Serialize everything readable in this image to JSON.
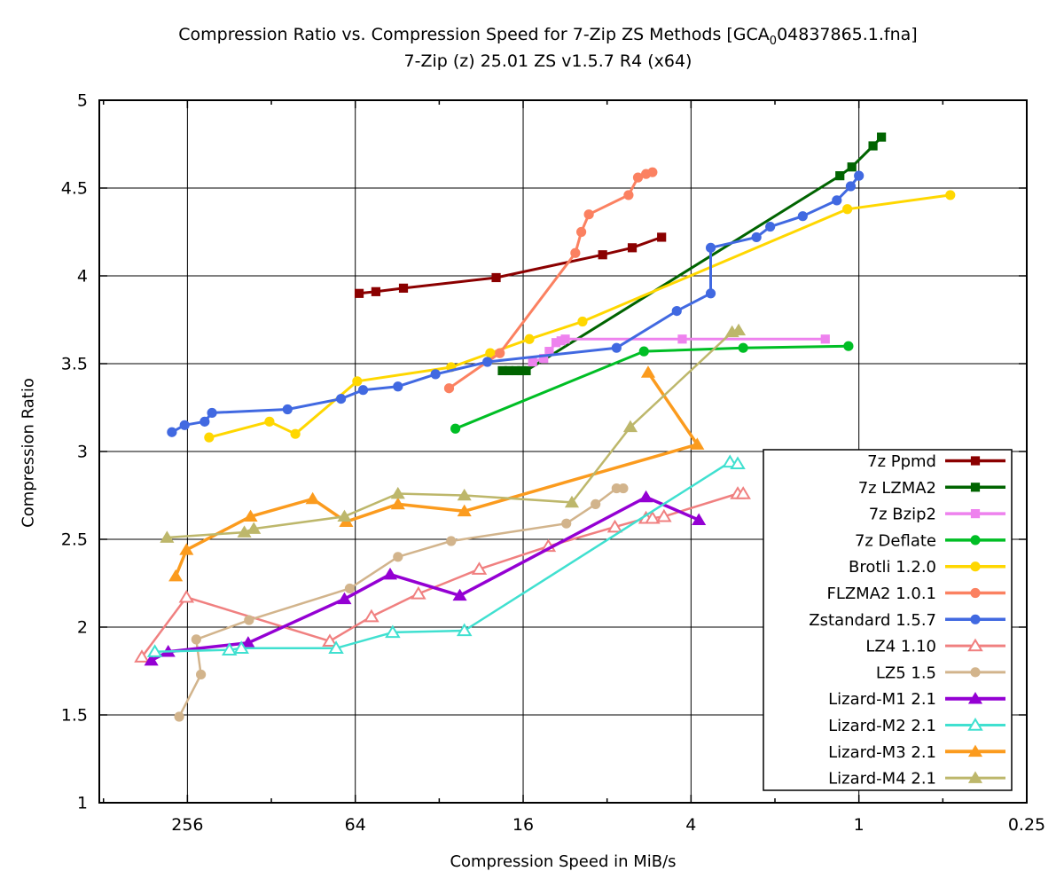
{
  "chart_data": {
    "type": "line",
    "title_parts": {
      "prefix": "Compression Ratio vs. Compression Speed for 7-Zip ZS Methods [GCA",
      "sub": "0",
      "suffix": "04837865.1.fna]"
    },
    "subtitle": "7-Zip (z) 25.01 ZS v1.5.7 R4 (x64)",
    "xlabel": "Compression Speed in MiB/s",
    "ylabel": "Compression Ratio",
    "x_scale": "log4-reversed",
    "grid": true,
    "legend_position": "inside-bottom-right",
    "ylim": [
      1,
      5
    ],
    "x_edge_values": {
      "left": 530,
      "right": 0.25
    },
    "x_ticks": [
      {
        "v": 256,
        "label": "256"
      },
      {
        "v": 64,
        "label": "64"
      },
      {
        "v": 16,
        "label": "16"
      },
      {
        "v": 4,
        "label": "4"
      },
      {
        "v": 1,
        "label": "1"
      },
      {
        "v": 0.25,
        "label": "0.25"
      }
    ],
    "x_minor_ticks": [
      512,
      128,
      32,
      8,
      2,
      0.5
    ],
    "y_ticks": [
      {
        "v": 1,
        "label": "1"
      },
      {
        "v": 1.5,
        "label": "1.5"
      },
      {
        "v": 2,
        "label": "2"
      },
      {
        "v": 2.5,
        "label": "2.5"
      },
      {
        "v": 3,
        "label": "3"
      },
      {
        "v": 3.5,
        "label": "3.5"
      },
      {
        "v": 4,
        "label": "4"
      },
      {
        "v": 4.5,
        "label": "4.5"
      },
      {
        "v": 5,
        "label": "5"
      }
    ],
    "series": [
      {
        "name": "7z Ppmd",
        "color": "#8b0000",
        "marker": "square",
        "fill": "solid",
        "line_width": 3,
        "points": [
          [
            62,
            3.9
          ],
          [
            54,
            3.91
          ],
          [
            43,
            3.93
          ],
          [
            20,
            3.99
          ],
          [
            8.3,
            4.12
          ],
          [
            6.5,
            4.16
          ],
          [
            5.1,
            4.22
          ]
        ]
      },
      {
        "name": "7z LZMA2",
        "color": "#006400",
        "marker": "square",
        "fill": "solid",
        "line_width": 3,
        "points": [
          [
            19,
            3.46
          ],
          [
            18,
            3.46
          ],
          [
            17,
            3.46
          ],
          [
            16.2,
            3.46
          ],
          [
            15.6,
            3.46
          ],
          [
            1.17,
            4.57
          ],
          [
            1.06,
            4.62
          ],
          [
            0.89,
            4.74
          ],
          [
            0.83,
            4.79
          ]
        ]
      },
      {
        "name": "7z Bzip2",
        "color": "#ee82ee",
        "marker": "square",
        "fill": "solid",
        "line_width": 3,
        "points": [
          [
            14.8,
            3.51
          ],
          [
            13.5,
            3.53
          ],
          [
            12.9,
            3.57
          ],
          [
            12.2,
            3.62
          ],
          [
            11.7,
            3.63
          ],
          [
            11.3,
            3.64
          ],
          [
            4.3,
            3.64
          ],
          [
            1.32,
            3.64
          ]
        ]
      },
      {
        "name": "7z Deflate",
        "color": "#00be25",
        "marker": "circle",
        "fill": "solid",
        "line_width": 3,
        "points": [
          [
            28,
            3.13
          ],
          [
            5.9,
            3.57
          ],
          [
            2.6,
            3.59
          ],
          [
            1.09,
            3.6
          ]
        ]
      },
      {
        "name": "Brotli 1.2.0",
        "color": "#ffd700",
        "marker": "circle",
        "fill": "solid",
        "line_width": 3,
        "points": [
          [
            214,
            3.08
          ],
          [
            130,
            3.17
          ],
          [
            105,
            3.1
          ],
          [
            63,
            3.4
          ],
          [
            29,
            3.48
          ],
          [
            21,
            3.56
          ],
          [
            15.2,
            3.64
          ],
          [
            9.8,
            3.74
          ],
          [
            1.1,
            4.38
          ],
          [
            0.47,
            4.46
          ]
        ]
      },
      {
        "name": "FLZMA2 1.0.1",
        "color": "#fb8161",
        "marker": "circle",
        "fill": "solid",
        "line_width": 3,
        "points": [
          [
            29.5,
            3.36
          ],
          [
            19.4,
            3.56
          ],
          [
            10.4,
            4.13
          ],
          [
            9.9,
            4.25
          ],
          [
            9.3,
            4.35
          ],
          [
            6.7,
            4.46
          ],
          [
            6.2,
            4.56
          ],
          [
            5.8,
            4.58
          ],
          [
            5.5,
            4.59
          ]
        ]
      },
      {
        "name": "Zstandard 1.5.7",
        "color": "#4169e1",
        "marker": "circle",
        "fill": "solid",
        "line_width": 3,
        "points": [
          [
            291,
            3.11
          ],
          [
            262,
            3.15
          ],
          [
            222,
            3.17
          ],
          [
            209,
            3.22
          ],
          [
            112,
            3.24
          ],
          [
            72,
            3.3
          ],
          [
            60,
            3.35
          ],
          [
            45,
            3.37
          ],
          [
            33,
            3.44
          ],
          [
            21.5,
            3.51
          ],
          [
            7.4,
            3.59
          ],
          [
            4.5,
            3.8
          ],
          [
            3.4,
            3.9
          ],
          [
            3.4,
            4.16
          ],
          [
            2.33,
            4.22
          ],
          [
            2.08,
            4.28
          ],
          [
            1.59,
            4.34
          ],
          [
            1.2,
            4.43
          ],
          [
            1.07,
            4.51
          ],
          [
            1.0,
            4.57
          ]
        ]
      },
      {
        "name": "LZ4 1.10",
        "color": "#f08080",
        "marker": "triangle",
        "fill": "open",
        "line_width": 2.5,
        "points": [
          [
            373,
            1.83
          ],
          [
            258,
            2.17
          ],
          [
            79,
            1.92
          ],
          [
            56,
            2.06
          ],
          [
            38,
            2.19
          ],
          [
            23,
            2.33
          ],
          [
            13,
            2.46
          ],
          [
            7.5,
            2.57
          ],
          [
            5.8,
            2.62
          ],
          [
            5.5,
            2.62
          ],
          [
            5.0,
            2.63
          ],
          [
            2.72,
            2.76
          ],
          [
            2.6,
            2.76
          ]
        ]
      },
      {
        "name": "LZ5 1.5",
        "color": "#d2b48c",
        "marker": "circle",
        "fill": "solid",
        "line_width": 2.5,
        "points": [
          [
            274,
            1.49
          ],
          [
            229,
            1.73
          ],
          [
            238,
            1.93
          ],
          [
            154,
            2.04
          ],
          [
            67,
            2.22
          ],
          [
            45,
            2.4
          ],
          [
            29,
            2.49
          ],
          [
            11.2,
            2.59
          ],
          [
            8.8,
            2.7
          ],
          [
            7.4,
            2.79
          ],
          [
            7.0,
            2.79
          ]
        ]
      },
      {
        "name": "Lizard-M1 2.1",
        "color": "#9400d3",
        "marker": "triangle",
        "fill": "solid",
        "line_width": 3.5,
        "points": [
          [
            345,
            1.81
          ],
          [
            300,
            1.86
          ],
          [
            155,
            1.91
          ],
          [
            70,
            2.16
          ],
          [
            48,
            2.3
          ],
          [
            27,
            2.18
          ],
          [
            5.8,
            2.74
          ],
          [
            3.75,
            2.61
          ]
        ]
      },
      {
        "name": "Lizard-M2 2.1",
        "color": "#40e0d0",
        "marker": "triangle",
        "fill": "open",
        "line_width": 2.5,
        "points": [
          [
            335,
            1.86
          ],
          [
            181,
            1.87
          ],
          [
            164,
            1.88
          ],
          [
            75,
            1.88
          ],
          [
            47,
            1.97
          ],
          [
            26,
            1.98
          ],
          [
            2.9,
            2.94
          ],
          [
            2.72,
            2.93
          ]
        ]
      },
      {
        "name": "Lizard-M3 2.1",
        "color": "#fb9b1e",
        "marker": "triangle",
        "fill": "solid",
        "line_width": 3.5,
        "points": [
          [
            282,
            2.29
          ],
          [
            258,
            2.44
          ],
          [
            152,
            2.63
          ],
          [
            91,
            2.73
          ],
          [
            69,
            2.6
          ],
          [
            45,
            2.7
          ],
          [
            26,
            2.66
          ],
          [
            3.8,
            3.04
          ],
          [
            5.7,
            3.45
          ]
        ]
      },
      {
        "name": "Lizard-M4 2.1",
        "color": "#bdb76b",
        "marker": "triangle",
        "fill": "solid",
        "line_width": 2.5,
        "points": [
          [
            303,
            2.51
          ],
          [
            160,
            2.54
          ],
          [
            148,
            2.56
          ],
          [
            70,
            2.63
          ],
          [
            45,
            2.76
          ],
          [
            26,
            2.75
          ],
          [
            10.7,
            2.71
          ],
          [
            6.6,
            3.14
          ],
          [
            2.85,
            3.68
          ],
          [
            2.7,
            3.69
          ]
        ]
      }
    ]
  }
}
